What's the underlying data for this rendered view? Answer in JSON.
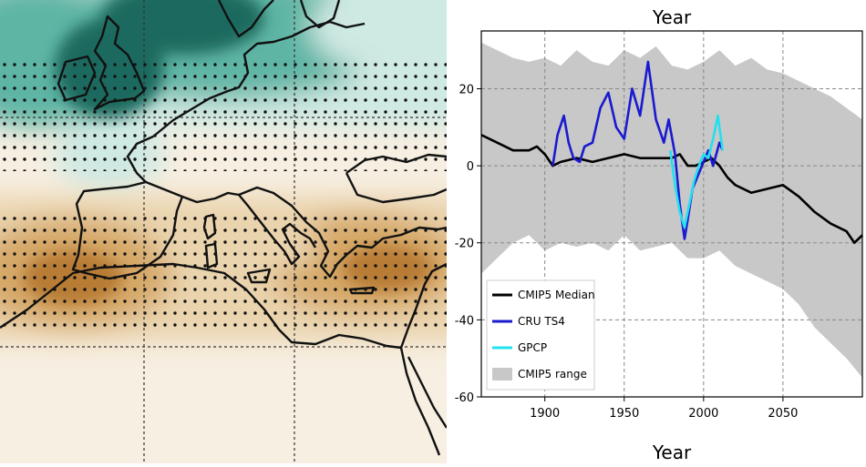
{
  "chart_data": [
    {
      "type": "heatmap",
      "description_source": "map",
      "colors": {
        "wet_dark": "#1e6b5e",
        "wet_mid": "#5fb5a4",
        "wet_light": "#cfe9e3",
        "neutral": "#f7efe2",
        "dry_light": "#ead4ae",
        "dry_mid": "#d6a868",
        "dry_dark": "#b87c35"
      }
    },
    {
      "type": "line",
      "title": "Year",
      "xlabel": "Year",
      "ylabel": "",
      "xlim": [
        1860,
        2100
      ],
      "ylim": [
        -60,
        35
      ],
      "xticks": [
        1900,
        1950,
        2000,
        2050
      ],
      "yticks": [
        20,
        0,
        -20,
        -40,
        -60
      ],
      "grid": true,
      "legend_position": "bottom-left",
      "series": [
        {
          "name": "CMIP5 Median",
          "color": "#000000",
          "x": [
            1860,
            1870,
            1880,
            1890,
            1895,
            1900,
            1905,
            1910,
            1920,
            1930,
            1940,
            1950,
            1960,
            1970,
            1980,
            1985,
            1990,
            1995,
            2000,
            2005,
            2010,
            2015,
            2020,
            2030,
            2040,
            2050,
            2060,
            2070,
            2080,
            2090,
            2095,
            2100
          ],
          "y": [
            8,
            6,
            4,
            4,
            5,
            3,
            0,
            1,
            2,
            1,
            2,
            3,
            2,
            2,
            2,
            3,
            0,
            0,
            1,
            2,
            0,
            -3,
            -5,
            -7,
            -6,
            -5,
            -8,
            -12,
            -15,
            -17,
            -20,
            -18
          ]
        },
        {
          "name": "CRU TS4",
          "color": "#1a1ad0",
          "x": [
            1905,
            1908,
            1912,
            1915,
            1918,
            1922,
            1925,
            1930,
            1935,
            1940,
            1945,
            1950,
            1955,
            1960,
            1965,
            1970,
            1975,
            1978,
            1982,
            1985,
            1988,
            1990,
            1993,
            1996,
            2000,
            2003,
            2006,
            2010,
            2012
          ],
          "y": [
            0,
            8,
            13,
            6,
            2,
            1,
            5,
            6,
            15,
            19,
            10,
            7,
            20,
            13,
            27,
            12,
            6,
            12,
            3,
            -10,
            -19,
            -14,
            -6,
            -3,
            1,
            4,
            0,
            6,
            4
          ]
        },
        {
          "name": "GPCP",
          "color": "#22e0f0",
          "x": [
            1979,
            1982,
            1985,
            1988,
            1991,
            1994,
            1997,
            2000,
            2003,
            2006,
            2009,
            2012
          ],
          "y": [
            4,
            -5,
            -12,
            -16,
            -10,
            -4,
            0,
            3,
            2,
            7,
            13,
            4
          ]
        },
        {
          "name": "CMIP5 range",
          "color": "#c8c8c8",
          "x": [
            1860,
            1870,
            1880,
            1890,
            1900,
            1910,
            1920,
            1930,
            1940,
            1950,
            1960,
            1970,
            1980,
            1990,
            2000,
            2010,
            2020,
            2030,
            2040,
            2050,
            2060,
            2070,
            2080,
            2090,
            2100
          ],
          "upper": [
            32,
            30,
            28,
            27,
            28,
            26,
            30,
            27,
            26,
            30,
            28,
            31,
            26,
            25,
            27,
            30,
            26,
            28,
            25,
            24,
            22,
            20,
            18,
            15,
            12
          ],
          "lower": [
            -28,
            -24,
            -20,
            -18,
            -22,
            -20,
            -21,
            -20,
            -22,
            -18,
            -22,
            -21,
            -20,
            -24,
            -24,
            -22,
            -26,
            -28,
            -30,
            -32,
            -36,
            -42,
            -46,
            -50,
            -55
          ]
        }
      ]
    }
  ]
}
